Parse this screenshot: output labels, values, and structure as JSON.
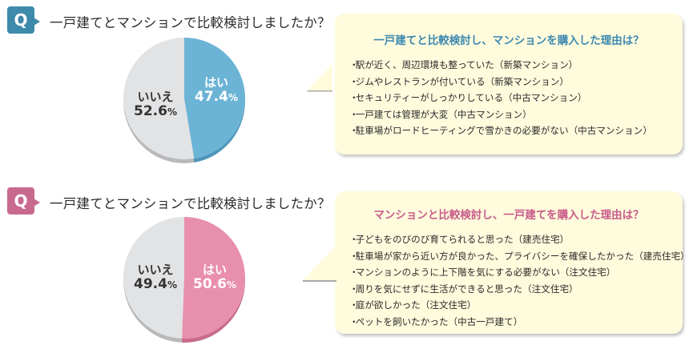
{
  "colors": {
    "blue_accent": "#3d8aab",
    "blue_pie": "#6cb4d6",
    "pink_accent": "#c86a8e",
    "pink_pie": "#e98fae",
    "grey_pie": "#e2e3e5",
    "bubble_bg": "#fffbdd"
  },
  "sections": [
    {
      "badge": "Q",
      "question": "一戸建てとマンションで比較検討しましたか？",
      "pie": {
        "no_label": "いいえ",
        "no_value": "52.6",
        "yes_label": "はい",
        "yes_value": "47.4",
        "unit": "%"
      },
      "bubble": {
        "title": "一戸建てと比較検討し、マンションを購入した理由は？",
        "reasons": [
          "駅が近く、周辺環境も整っていた（新築マンション）",
          "ジムやレストランが付いている（新築マンション）",
          "セキュリティーがしっかりしている（中古マンション）",
          "一戸建ては管理が大変（中古マンション）",
          "駐車場がロードヒーティングで雪かきの必要がない（中古マンション）"
        ]
      }
    },
    {
      "badge": "Q",
      "question": "一戸建てとマンションで比較検討しましたか？",
      "pie": {
        "no_label": "いいえ",
        "no_value": "49.4",
        "yes_label": "はい",
        "yes_value": "50.6",
        "unit": "%"
      },
      "bubble": {
        "title": "マンションと比較検討し、一戸建てを購入した理由は？",
        "reasons": [
          "子どもをのびのび育てられると思った（建売住宅）",
          "駐車場が家から近い方が良かった、プライバシーを確保したかった（建売住宅）",
          "マンションのように上下階を気にする必要がない（注文住宅）",
          "周りを気にせずに生活ができると思った（注文住宅）",
          "庭が欲しかった（注文住宅）",
          "ペットを飼いたかった（中古一戸建て）"
        ]
      }
    }
  ],
  "chart_data": [
    {
      "type": "pie",
      "title": "一戸建てとマンションで比較検討しましたか？（マンション購入者）",
      "categories": [
        "はい",
        "いいえ"
      ],
      "values": [
        47.4,
        52.6
      ],
      "unit": "%",
      "colors": [
        "#6cb4d6",
        "#e2e3e5"
      ],
      "annotations": "はい 47.4% / いいえ 52.6%"
    },
    {
      "type": "pie",
      "title": "一戸建てとマンションで比較検討しましたか？（一戸建て購入者）",
      "categories": [
        "はい",
        "いいえ"
      ],
      "values": [
        50.6,
        49.4
      ],
      "unit": "%",
      "colors": [
        "#e98fae",
        "#e2e3e5"
      ],
      "annotations": "はい 50.6% / いいえ 49.4%"
    }
  ]
}
